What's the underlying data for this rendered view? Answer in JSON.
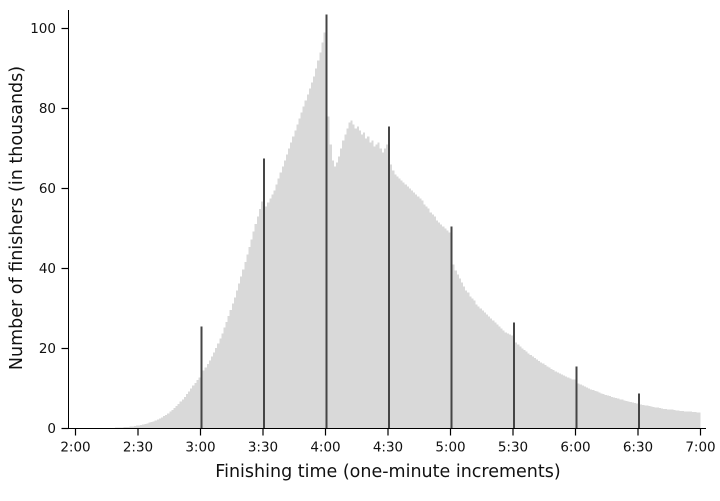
{
  "chart_data": {
    "type": "bar",
    "title": "",
    "xlabel": "Finishing time (one-minute increments)",
    "ylabel": "Number of finishers (in thousands)",
    "x_unit": "minutes",
    "x_start_minutes": 120,
    "bar_width_minutes": 1,
    "x_tick_labels": [
      "2:00",
      "2:30",
      "3:00",
      "3:30",
      "4:00",
      "4:30",
      "5:00",
      "5:30",
      "6:00",
      "6:30",
      "7:00"
    ],
    "x_tick_minutes": [
      120,
      150,
      180,
      210,
      240,
      270,
      300,
      330,
      360,
      390,
      420
    ],
    "y_ticks": [
      0,
      20,
      40,
      60,
      80,
      100
    ],
    "ylim": [
      0,
      104
    ],
    "grid": false,
    "legend": false,
    "highlight_minutes": [
      180,
      210,
      240,
      270,
      300,
      330,
      360,
      390
    ],
    "bar_color": "#d9d9d9",
    "highlight_color": "#454545",
    "axis_color": "#000000",
    "text_color": "#111111",
    "values": [
      0.02,
      0.02,
      0.02,
      0.03,
      0.03,
      0.03,
      0.04,
      0.04,
      0.05,
      0.05,
      0.06,
      0.07,
      0.08,
      0.09,
      0.1,
      0.11,
      0.13,
      0.15,
      0.17,
      0.19,
      0.22,
      0.25,
      0.28,
      0.32,
      0.37,
      0.42,
      0.48,
      0.55,
      0.62,
      0.7,
      0.8,
      0.9,
      1.0,
      1.15,
      1.3,
      1.45,
      1.6,
      1.8,
      2.0,
      2.2,
      2.5,
      2.8,
      3.1,
      3.4,
      3.8,
      4.2,
      4.6,
      5.1,
      5.6,
      6.1,
      6.7,
      7.3,
      7.9,
      8.6,
      9.3,
      10.0,
      10.7,
      11.4,
      12.1,
      12.8,
      25.5,
      14.5,
      15.3,
      16.1,
      17.0,
      18.0,
      19.0,
      20.1,
      21.3,
      22.5,
      23.8,
      25.2,
      26.6,
      28.1,
      29.6,
      31.2,
      32.8,
      34.5,
      36.2,
      38.0,
      39.8,
      41.6,
      43.5,
      45.4,
      47.3,
      49.2,
      51.1,
      53.0,
      54.9,
      56.8,
      67.5,
      55.5,
      56.5,
      57.5,
      58.5,
      59.5,
      61.0,
      62.5,
      64.0,
      65.5,
      67.0,
      68.5,
      70.0,
      71.5,
      73.0,
      74.5,
      76.0,
      77.5,
      79.0,
      80.5,
      82.0,
      83.5,
      85.0,
      86.5,
      88.0,
      90.0,
      92.0,
      94.0,
      96.5,
      99.0,
      103.5,
      78.0,
      71.0,
      67.0,
      65.5,
      66.5,
      68.0,
      70.0,
      72.0,
      73.5,
      75.0,
      76.5,
      77.0,
      76.0,
      75.0,
      75.5,
      74.5,
      73.5,
      74.0,
      72.5,
      73.0,
      71.5,
      72.0,
      70.5,
      71.0,
      71.5,
      70.0,
      69.0,
      70.0,
      71.0,
      75.5,
      66.0,
      64.5,
      63.5,
      63.0,
      62.5,
      62.0,
      61.5,
      61.0,
      60.5,
      60.0,
      59.5,
      59.0,
      58.5,
      58.0,
      57.5,
      57.0,
      56.0,
      55.5,
      55.0,
      54.0,
      53.5,
      53.0,
      52.0,
      51.5,
      51.0,
      50.5,
      50.0,
      49.5,
      49.0,
      50.5,
      41.0,
      39.5,
      38.5,
      37.5,
      36.5,
      35.5,
      34.5,
      34.0,
      33.0,
      32.5,
      32.0,
      31.0,
      30.5,
      30.0,
      29.5,
      29.0,
      28.5,
      28.0,
      27.5,
      27.0,
      26.5,
      26.0,
      25.5,
      25.0,
      24.5,
      24.0,
      23.8,
      23.5,
      23.2,
      26.5,
      21.5,
      21.0,
      20.5,
      20.0,
      19.6,
      19.2,
      18.8,
      18.4,
      18.0,
      17.6,
      17.2,
      16.9,
      16.5,
      16.2,
      15.9,
      15.5,
      15.2,
      14.9,
      14.6,
      14.3,
      14.0,
      13.8,
      13.5,
      13.2,
      13.0,
      12.7,
      12.5,
      12.3,
      12.2,
      15.5,
      11.2,
      11.0,
      10.7,
      10.5,
      10.2,
      10.0,
      9.8,
      9.6,
      9.4,
      9.2,
      9.0,
      8.8,
      8.6,
      8.4,
      8.2,
      8.1,
      7.9,
      7.8,
      7.6,
      7.5,
      7.3,
      7.2,
      7.0,
      6.9,
      6.8,
      6.6,
      6.5,
      6.4,
      6.3,
      8.8,
      6.0,
      5.9,
      5.8,
      5.7,
      5.6,
      5.5,
      5.4,
      5.3,
      5.2,
      5.1,
      5.0,
      4.9,
      4.9,
      4.8,
      4.7,
      4.7,
      4.6,
      4.5,
      4.5,
      4.4,
      4.4,
      4.3,
      4.3,
      4.2,
      4.2,
      4.1,
      4.1,
      4.0,
      4.0
    ]
  }
}
